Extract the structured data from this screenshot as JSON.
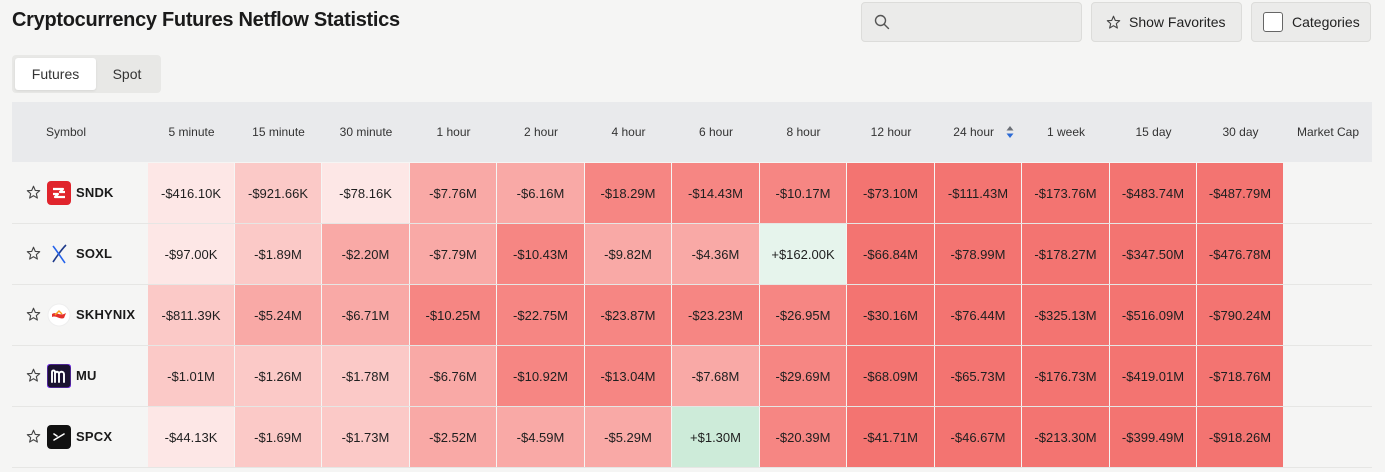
{
  "page": {
    "title": "Cryptocurrency Futures Netflow Statistics"
  },
  "search": {
    "placeholder": "",
    "value": "",
    "icon": "search-icon"
  },
  "favorites_button": {
    "label": "Show Favorites",
    "icon": "star-icon"
  },
  "categories_button": {
    "label": "Categories",
    "checked": false
  },
  "tabs": [
    {
      "label": "Futures",
      "active": true
    },
    {
      "label": "Spot",
      "active": false
    }
  ],
  "table": {
    "columns": [
      "Symbol",
      "5 minute",
      "15 minute",
      "30 minute",
      "1 hour",
      "2 hour",
      "4 hour",
      "6 hour",
      "8 hour",
      "12 hour",
      "24 hour",
      "1 week",
      "15 day",
      "30 day",
      "Market Cap"
    ],
    "sorted_column": "24 hour",
    "rows": [
      {
        "symbol": "SNDK",
        "logo": "sndk-logo",
        "values": [
          "-$416.10K",
          "-$921.66K",
          "-$78.16K",
          "-$7.76M",
          "-$6.16M",
          "-$18.29M",
          "-$14.43M",
          "-$10.17M",
          "-$73.10M",
          "-$111.43M",
          "-$173.76M",
          "-$483.74M",
          "-$487.79M"
        ],
        "market_cap": ""
      },
      {
        "symbol": "SOXL",
        "logo": "soxl-logo",
        "values": [
          "-$97.00K",
          "-$1.89M",
          "-$2.20M",
          "-$7.79M",
          "-$10.43M",
          "-$9.82M",
          "-$4.36M",
          "+$162.00K",
          "-$66.84M",
          "-$78.99M",
          "-$178.27M",
          "-$347.50M",
          "-$476.78M"
        ],
        "market_cap": ""
      },
      {
        "symbol": "SKHYNIX",
        "logo": "skhynix-logo",
        "values": [
          "-$811.39K",
          "-$5.24M",
          "-$6.71M",
          "-$10.25M",
          "-$22.75M",
          "-$23.87M",
          "-$23.23M",
          "-$26.95M",
          "-$30.16M",
          "-$76.44M",
          "-$325.13M",
          "-$516.09M",
          "-$790.24M"
        ],
        "market_cap": ""
      },
      {
        "symbol": "MU",
        "logo": "mu-logo",
        "values": [
          "-$1.01M",
          "-$1.26M",
          "-$1.78M",
          "-$6.76M",
          "-$10.92M",
          "-$13.04M",
          "-$7.68M",
          "-$29.69M",
          "-$68.09M",
          "-$65.73M",
          "-$176.73M",
          "-$419.01M",
          "-$718.76M"
        ],
        "market_cap": ""
      },
      {
        "symbol": "SPCX",
        "logo": "spcx-logo",
        "values": [
          "-$44.13K",
          "-$1.69M",
          "-$1.73M",
          "-$2.52M",
          "-$4.59M",
          "-$5.29M",
          "+$1.30M",
          "-$20.39M",
          "-$41.71M",
          "-$46.67M",
          "-$213.30M",
          "-$399.49M",
          "-$918.26M"
        ],
        "market_cap": ""
      }
    ]
  },
  "colors": {
    "negative_scale": [
      "#fde7e6",
      "#fbc9c7",
      "#f9a9a6",
      "#f68683",
      "#f37471"
    ],
    "positive_scale": [
      "#e6f4ec",
      "#cdebd9"
    ],
    "header_bg": "#e9eaec",
    "page_bg": "#f5f5f4"
  }
}
